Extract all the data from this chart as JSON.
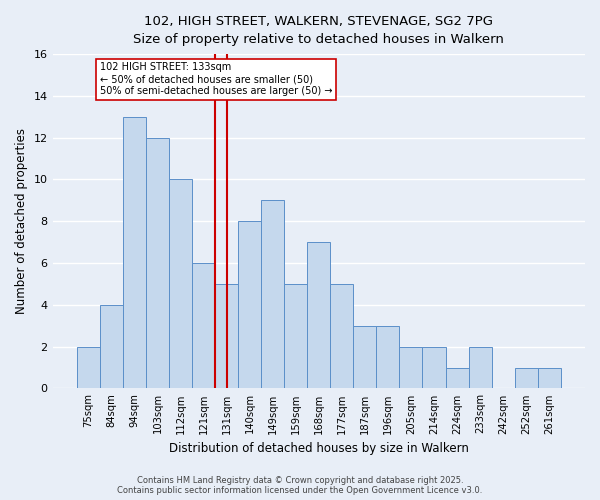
{
  "title1": "102, HIGH STREET, WALKERN, STEVENAGE, SG2 7PG",
  "title2": "Size of property relative to detached houses in Walkern",
  "xlabel": "Distribution of detached houses by size in Walkern",
  "ylabel": "Number of detached properties",
  "bins": [
    "75sqm",
    "84sqm",
    "94sqm",
    "103sqm",
    "112sqm",
    "121sqm",
    "131sqm",
    "140sqm",
    "149sqm",
    "159sqm",
    "168sqm",
    "177sqm",
    "187sqm",
    "196sqm",
    "205sqm",
    "214sqm",
    "224sqm",
    "233sqm",
    "242sqm",
    "252sqm",
    "261sqm"
  ],
  "counts": [
    2,
    4,
    13,
    12,
    10,
    6,
    5,
    8,
    9,
    5,
    7,
    5,
    3,
    3,
    2,
    2,
    1,
    2,
    0,
    1,
    1
  ],
  "bar_color": "#c5d8ed",
  "bar_edge_color": "#5b8fc9",
  "vline_bar_index": 6,
  "vline_color": "#cc0000",
  "annotation_title": "102 HIGH STREET: 133sqm",
  "annotation_line1": "← 50% of detached houses are smaller (50)",
  "annotation_line2": "50% of semi-detached houses are larger (50) →",
  "annotation_box_color": "#cc0000",
  "ylim": [
    0,
    16
  ],
  "yticks": [
    0,
    2,
    4,
    6,
    8,
    10,
    12,
    14,
    16
  ],
  "footer1": "Contains HM Land Registry data © Crown copyright and database right 2025.",
  "footer2": "Contains public sector information licensed under the Open Government Licence v3.0.",
  "bg_color": "#e8eef7",
  "plot_bg_color": "#e8eef7"
}
